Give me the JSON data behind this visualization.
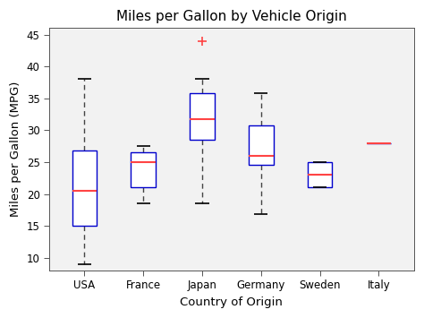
{
  "title": "Miles per Gallon by Vehicle Origin",
  "xlabel": "Country of Origin",
  "ylabel": "Miles per Gallon (MPG)",
  "categories": [
    "USA",
    "France",
    "Japan",
    "Germany",
    "Sweden",
    "Italy"
  ],
  "ylim": [
    8,
    46
  ],
  "yticks": [
    10,
    15,
    20,
    25,
    30,
    35,
    40,
    45
  ],
  "box_color": "#0000CC",
  "median_color": "#FF4444",
  "whisker_color": "#444444",
  "cap_color": "#000000",
  "outlier_color": "#FF4444",
  "background_color": "#FFFFFF",
  "axes_bg_color": "#F2F2F2",
  "boxes": [
    {
      "q1": 15.0,
      "median": 20.5,
      "q3": 26.8,
      "whisker_low": 9.0,
      "whisker_high": 38.0,
      "outliers": []
    },
    {
      "q1": 21.0,
      "median": 25.0,
      "q3": 26.5,
      "whisker_low": 18.5,
      "whisker_high": 27.5,
      "outliers": []
    },
    {
      "q1": 28.5,
      "median": 31.8,
      "q3": 35.8,
      "whisker_low": 18.5,
      "whisker_high": 38.0,
      "outliers": [
        44.0
      ]
    },
    {
      "q1": 24.5,
      "median": 26.0,
      "q3": 30.8,
      "whisker_low": 16.8,
      "whisker_high": 35.8,
      "outliers": []
    },
    {
      "q1": 21.0,
      "median": 23.0,
      "q3": 25.0,
      "whisker_low": 21.0,
      "whisker_high": 25.0,
      "outliers": []
    },
    {
      "q1": 28.0,
      "median": 28.0,
      "q3": 28.0,
      "whisker_low": 28.0,
      "whisker_high": 28.0,
      "outliers": []
    }
  ],
  "box_width": 0.42,
  "linewidth": 1.0,
  "cap_linewidth": 1.2,
  "title_fontsize": 11,
  "axis_label_fontsize": 9.5,
  "tick_fontsize": 8.5
}
